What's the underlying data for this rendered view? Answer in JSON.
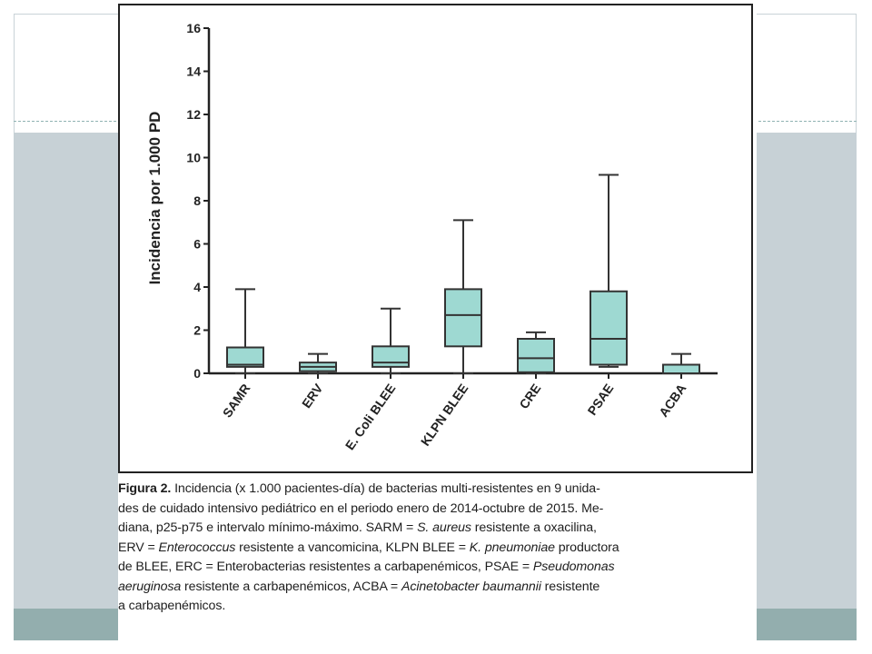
{
  "chart_data": {
    "type": "box",
    "title": "",
    "xlabel": "",
    "ylabel": "Incidencia por 1.000 PD",
    "ylim": [
      0,
      16
    ],
    "yticks": [
      "0",
      "2",
      "4",
      "6",
      "8",
      "10",
      "12",
      "14",
      "16"
    ],
    "grid": false,
    "categories": [
      "SAMR",
      "ERV",
      "E. Coli BLEE",
      "KLPN BLEE",
      "CRE",
      "PSAE",
      "ACBA"
    ],
    "boxes": [
      {
        "category": "SAMR",
        "min": 0,
        "q1": 0.3,
        "median": 0.4,
        "q3": 1.2,
        "max": 3.9
      },
      {
        "category": "ERV",
        "min": 0,
        "q1": 0.1,
        "median": 0.3,
        "q3": 0.5,
        "max": 0.9
      },
      {
        "category": "E. Coli BLEE",
        "min": 0,
        "q1": 0.3,
        "median": 0.5,
        "q3": 1.25,
        "max": 3.0
      },
      {
        "category": "KLPN BLEE",
        "min": 0,
        "q1": 1.25,
        "median": 2.7,
        "q3": 3.9,
        "max": 7.1
      },
      {
        "category": "CRE",
        "min": 0,
        "q1": 0.05,
        "median": 0.7,
        "q3": 1.6,
        "max": 1.9
      },
      {
        "category": "PSAE",
        "min": 0.3,
        "q1": 0.4,
        "median": 1.6,
        "q3": 3.8,
        "max": 9.2
      },
      {
        "category": "ACBA",
        "min": 0,
        "q1": 0,
        "median": 0.4,
        "q3": 0.4,
        "max": 0.9
      }
    ],
    "box_color": "#9ed9d2"
  },
  "caption": {
    "label": "Figura 2.",
    "line1": " Incidencia (x 1.000 pacientes-día) de bacterias multi-resistentes en 9 unida-",
    "line2": "des de cuidado intensivo pediátrico en el periodo enero de 2014-octubre de 2015. Me-",
    "line3": "diana, p25-p75 e intervalo mínimo-máximo. SARM = ",
    "sp1": "S. aureus",
    "line3b": " resistente a oxacilina,",
    "line4a": "ERV = ",
    "sp2": "Enterococcus",
    "line4b": " resistente a vancomicina, KLPN BLEE = ",
    "sp3": "K. pneumoniae",
    "line4c": " productora",
    "line5a": "de BLEE, ERC = Enterobacterias resistentes a carbapenémicos, PSAE = ",
    "sp4": "Pseudomonas",
    "line6a": "aeruginosa",
    "line6b": " resistente a carbapenémicos, ACBA = ",
    "sp5": "Acinetobacter baumannii",
    "line6c": " resistente",
    "line7": "a carbapenémicos."
  }
}
